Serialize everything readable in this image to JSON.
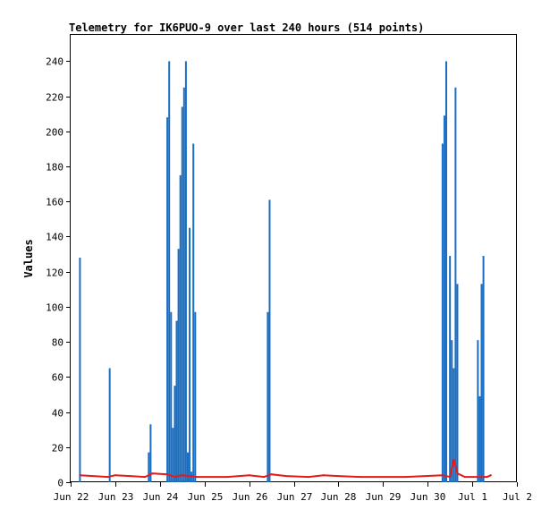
{
  "chart_data": {
    "type": "bar",
    "title": "Telemetry for IK6PUO-9 over last 240 hours (514 points)",
    "xlabel": "",
    "ylabel": "Values",
    "ylim": [
      0,
      255
    ],
    "xlim": [
      "2024-06-22 00:00",
      "2024-07-02 00:00"
    ],
    "grid": false,
    "legend": "none",
    "x_tick_labels": [
      "Jun 22",
      "Jun 23",
      "Jun 24",
      "Jun 25",
      "Jun 26",
      "Jun 27",
      "Jun 28",
      "Jun 29",
      "Jun 30",
      "Jul 1",
      "Jul 2"
    ],
    "y_ticks": [
      0,
      20,
      40,
      60,
      80,
      100,
      120,
      140,
      160,
      180,
      200,
      220,
      240
    ],
    "colors": {
      "spikes": "#1a6ec2",
      "baseline": "#e41a1c"
    },
    "series": [
      {
        "style": "bars",
        "color": "#1a6ec2",
        "points": [
          {
            "x": "2024-06-22 05:00",
            "y": 128
          },
          {
            "x": "2024-06-22 21:00",
            "y": 65
          },
          {
            "x": "2024-06-23 18:00",
            "y": 17
          },
          {
            "x": "2024-06-23 19:00",
            "y": 33
          },
          {
            "x": "2024-06-24 04:00",
            "y": 208
          },
          {
            "x": "2024-06-24 05:00",
            "y": 240
          },
          {
            "x": "2024-06-24 06:00",
            "y": 97
          },
          {
            "x": "2024-06-24 07:00",
            "y": 31
          },
          {
            "x": "2024-06-24 08:00",
            "y": 55
          },
          {
            "x": "2024-06-24 09:00",
            "y": 92
          },
          {
            "x": "2024-06-24 10:00",
            "y": 133
          },
          {
            "x": "2024-06-24 11:00",
            "y": 175
          },
          {
            "x": "2024-06-24 12:00",
            "y": 214
          },
          {
            "x": "2024-06-24 13:00",
            "y": 225
          },
          {
            "x": "2024-06-24 14:00",
            "y": 240
          },
          {
            "x": "2024-06-24 15:00",
            "y": 17
          },
          {
            "x": "2024-06-24 16:00",
            "y": 145
          },
          {
            "x": "2024-06-24 17:00",
            "y": 6
          },
          {
            "x": "2024-06-24 18:00",
            "y": 193
          },
          {
            "x": "2024-06-24 19:00",
            "y": 97
          },
          {
            "x": "2024-06-26 10:00",
            "y": 97
          },
          {
            "x": "2024-06-26 11:00",
            "y": 161
          },
          {
            "x": "2024-06-30 08:00",
            "y": 193
          },
          {
            "x": "2024-06-30 09:00",
            "y": 209
          },
          {
            "x": "2024-06-30 10:00",
            "y": 240
          },
          {
            "x": "2024-06-30 12:00",
            "y": 129
          },
          {
            "x": "2024-06-30 13:00",
            "y": 81
          },
          {
            "x": "2024-06-30 14:00",
            "y": 65
          },
          {
            "x": "2024-06-30 15:00",
            "y": 225
          },
          {
            "x": "2024-06-30 16:00",
            "y": 113
          },
          {
            "x": "2024-07-01 03:00",
            "y": 81
          },
          {
            "x": "2024-07-01 04:00",
            "y": 49
          },
          {
            "x": "2024-07-01 05:00",
            "y": 113
          },
          {
            "x": "2024-07-01 06:00",
            "y": 129
          }
        ]
      },
      {
        "style": "line",
        "color": "#e41a1c",
        "points": [
          {
            "x": "2024-06-22 05:00",
            "y": 4
          },
          {
            "x": "2024-06-22 12:00",
            "y": 3.5
          },
          {
            "x": "2024-06-22 20:00",
            "y": 3
          },
          {
            "x": "2024-06-23 00:00",
            "y": 4
          },
          {
            "x": "2024-06-23 08:00",
            "y": 3.5
          },
          {
            "x": "2024-06-23 16:00",
            "y": 3
          },
          {
            "x": "2024-06-23 20:00",
            "y": 5
          },
          {
            "x": "2024-06-24 04:00",
            "y": 4.5
          },
          {
            "x": "2024-06-24 08:00",
            "y": 3
          },
          {
            "x": "2024-06-24 12:00",
            "y": 4
          },
          {
            "x": "2024-06-24 20:00",
            "y": 3
          },
          {
            "x": "2024-06-25 12:00",
            "y": 3
          },
          {
            "x": "2024-06-26 00:00",
            "y": 4
          },
          {
            "x": "2024-06-26 08:00",
            "y": 3
          },
          {
            "x": "2024-06-26 12:00",
            "y": 4.5
          },
          {
            "x": "2024-06-26 20:00",
            "y": 3.5
          },
          {
            "x": "2024-06-27 08:00",
            "y": 3
          },
          {
            "x": "2024-06-27 16:00",
            "y": 4
          },
          {
            "x": "2024-06-28 00:00",
            "y": 3.5
          },
          {
            "x": "2024-06-28 12:00",
            "y": 3
          },
          {
            "x": "2024-06-29 12:00",
            "y": 3
          },
          {
            "x": "2024-06-30 08:00",
            "y": 4
          },
          {
            "x": "2024-06-30 12:00",
            "y": 3
          },
          {
            "x": "2024-06-30 14:00",
            "y": 13
          },
          {
            "x": "2024-06-30 16:00",
            "y": 5
          },
          {
            "x": "2024-06-30 20:00",
            "y": 3
          },
          {
            "x": "2024-07-01 08:00",
            "y": 3
          },
          {
            "x": "2024-07-01 10:00",
            "y": 4
          }
        ]
      }
    ]
  }
}
